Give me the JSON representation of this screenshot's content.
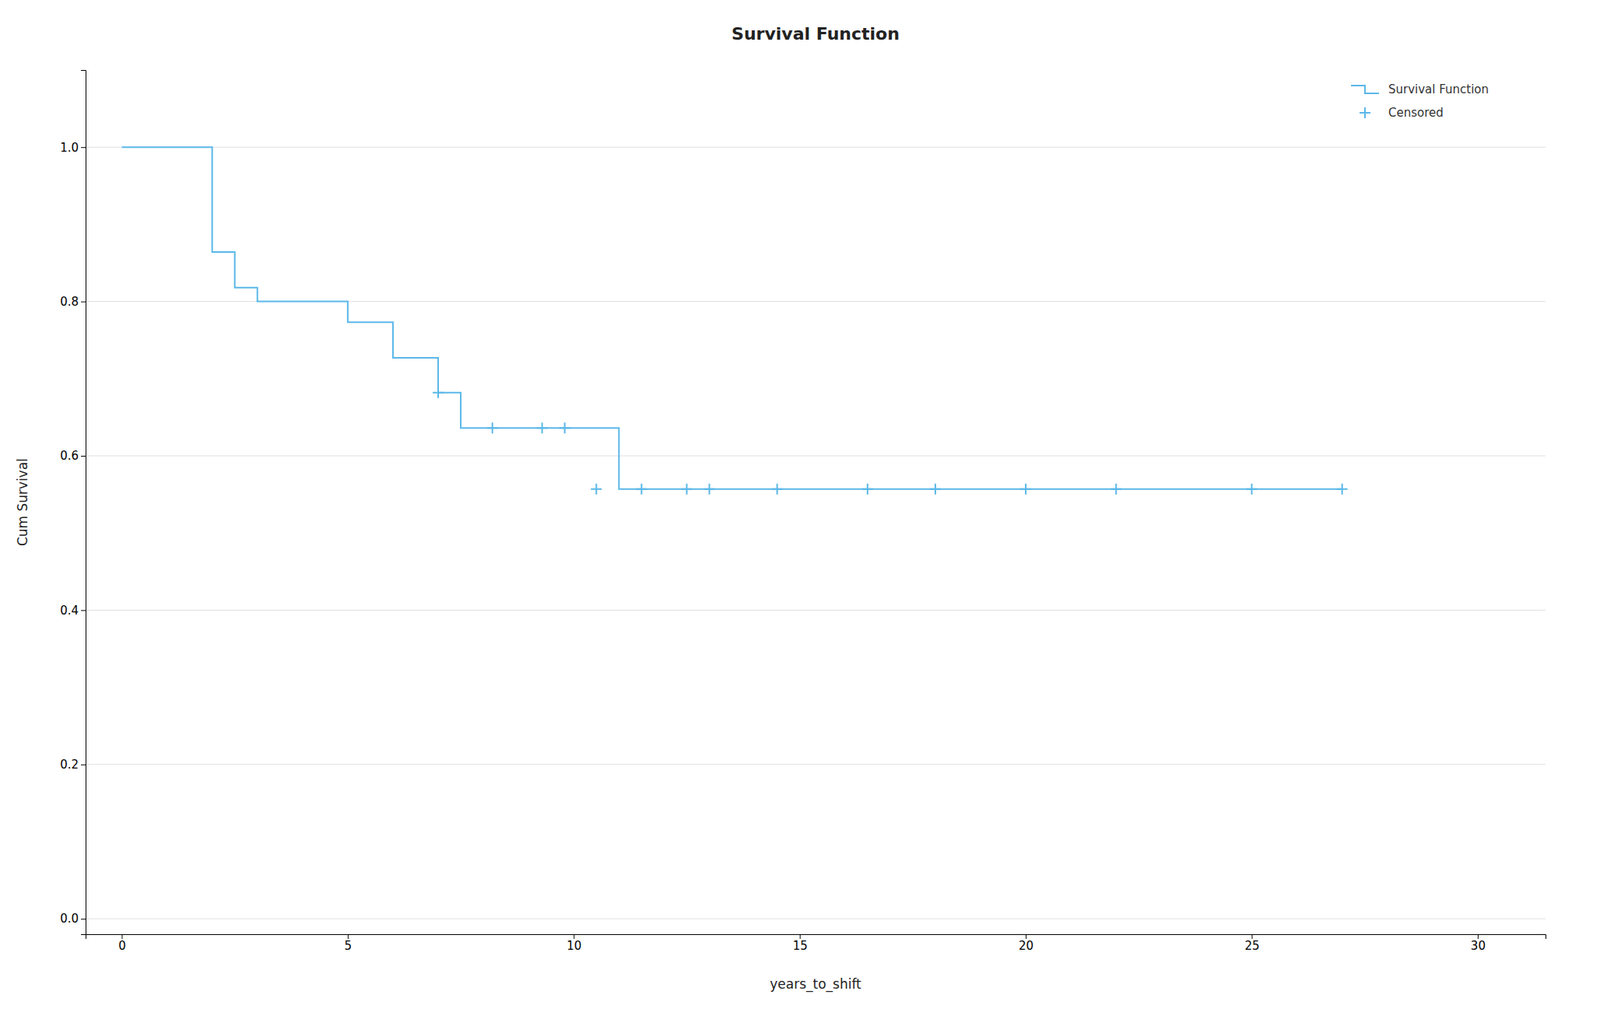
{
  "chart_data": {
    "type": "step",
    "title": "Survival Function",
    "xlabel": "years_to_shift",
    "ylabel": "Cum Survival",
    "xlim": [
      -0.8,
      31.5
    ],
    "ylim": [
      -0.02,
      1.1
    ],
    "xticks": [
      0,
      5,
      10,
      15,
      20,
      25,
      30
    ],
    "yticks": [
      {
        "value": 0.0,
        "label": "0.0"
      },
      0.2,
      0.4,
      0.6,
      0.8,
      {
        "value": 1.0,
        "label": "1.0"
      }
    ],
    "grid": "y",
    "legend": "upper right",
    "series": [
      {
        "name": "Survival Function",
        "type": "step",
        "color": "#5BB8E8",
        "x": [
          0,
          2.0,
          2.5,
          3.0,
          4.0,
          5.0,
          6.0,
          7.0,
          7.5,
          8.0,
          8.5,
          9.0,
          10.0,
          11.0,
          27.0
        ],
        "values": [
          1.0,
          0.864,
          0.818,
          0.8,
          0.8,
          0.773,
          0.727,
          0.682,
          0.636,
          0.636,
          0.636,
          0.636,
          0.636,
          0.557,
          0.557
        ]
      },
      {
        "name": "Censored",
        "type": "scatter",
        "marker": "+",
        "color": "#5BB8E8",
        "x": [
          7.0,
          8.2,
          9.3,
          9.8,
          10.5,
          11.5,
          12.5,
          13.0,
          14.5,
          16.5,
          18.0,
          20.0,
          22.0,
          25.0,
          27.0
        ],
        "values": [
          0.682,
          0.636,
          0.636,
          0.636,
          0.557,
          0.557,
          0.557,
          0.557,
          0.557,
          0.557,
          0.557,
          0.557,
          0.557,
          0.557,
          0.557
        ]
      }
    ]
  }
}
